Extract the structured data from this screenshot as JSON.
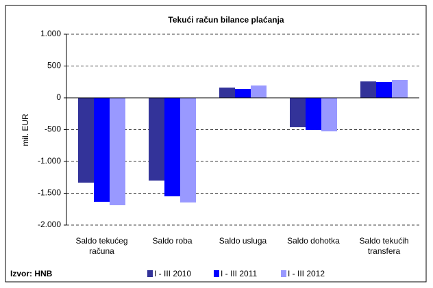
{
  "chart_data": {
    "type": "bar",
    "title": "Tekući račun bilance plaćanja",
    "ylabel": "mil. EUR",
    "source": "Izvor: HNB",
    "categories": [
      "Saldo tekućeg računa",
      "Saldo roba",
      "Saldo usluga",
      "Saldo dohotka",
      "Saldo tekućih transfera"
    ],
    "series": [
      {
        "name": "I - III 2010",
        "color": "#333399",
        "values": [
          -1333,
          -1300,
          161,
          -462,
          258
        ]
      },
      {
        "name": "I - III 2011",
        "color": "#0000ff",
        "values": [
          -1634,
          -1548,
          140,
          -505,
          247
        ]
      },
      {
        "name": "I - III 2012",
        "color": "#9999ff",
        "values": [
          -1688,
          -1645,
          194,
          -527,
          280
        ]
      }
    ],
    "ylim": [
      -2000,
      1000
    ],
    "yticks": [
      {
        "value": -2000,
        "label": "-2.000"
      },
      {
        "value": -1500,
        "label": "-1.500"
      },
      {
        "value": -1000,
        "label": "-1.000"
      },
      -500,
      0,
      500,
      {
        "value": 1000,
        "label": "1.000"
      }
    ],
    "grid": true
  }
}
